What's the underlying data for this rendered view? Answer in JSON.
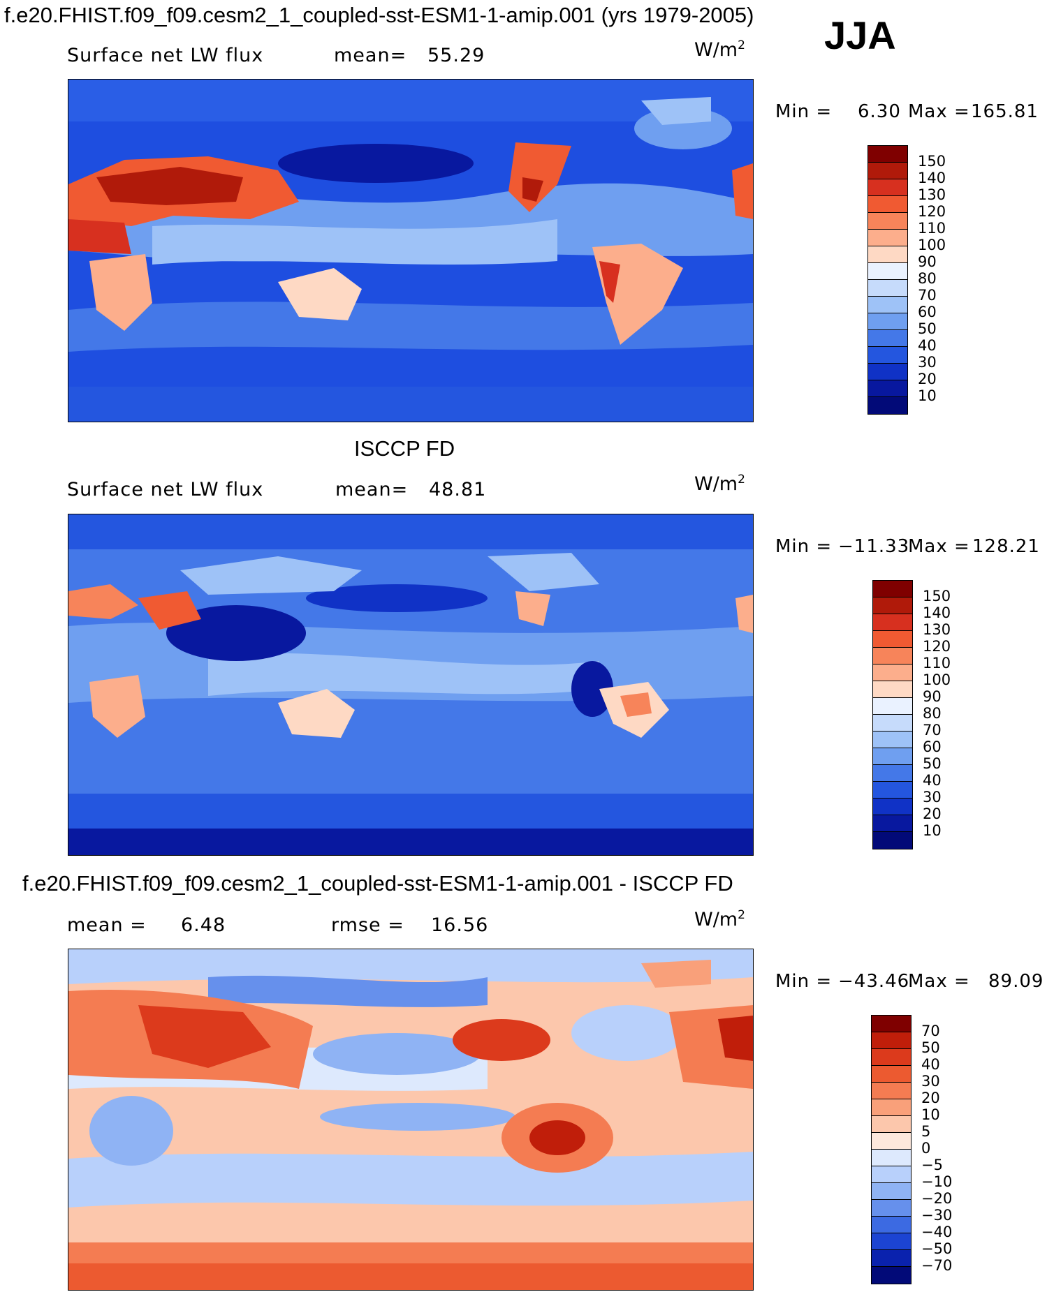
{
  "header": {
    "title": "f.e20.FHIST.f09_f09.cesm2_1_coupled-sst-ESM1-1-amip.001 (yrs 1979-2005)",
    "season": "JJA"
  },
  "panels": [
    {
      "id": "model",
      "title": "",
      "variable": "Surface net LW flux",
      "stat1_label": "mean=",
      "stat1_value": "55.29",
      "stat2_label": "",
      "stat2_value": "",
      "unit_base": "W/m",
      "unit_exp": "2",
      "min_label": "Min =",
      "min_value": "6.30",
      "max_label": "Max =",
      "max_value": "165.81",
      "colorbar": {
        "labels": [
          "150",
          "140",
          "130",
          "120",
          "110",
          "100",
          "90",
          "80",
          "70",
          "60",
          "50",
          "40",
          "30",
          "20",
          "10"
        ],
        "colors": [
          "#7f0000",
          "#b01a0a",
          "#d7301f",
          "#f05a32",
          "#f7845a",
          "#fcae8c",
          "#fed9c4",
          "#eaf2ff",
          "#c6dbfb",
          "#9ec2f7",
          "#6f9ff0",
          "#4478e8",
          "#2456df",
          "#1032c6",
          "#08189f",
          "#020a78"
        ]
      }
    },
    {
      "id": "obs",
      "title": "ISCCP FD",
      "variable": "Surface net LW flux",
      "stat1_label": "mean=",
      "stat1_value": "48.81",
      "stat2_label": "",
      "stat2_value": "",
      "unit_base": "W/m",
      "unit_exp": "2",
      "min_label": "Min =",
      "min_value": "−11.33",
      "max_label": "Max =",
      "max_value": "128.21",
      "colorbar": {
        "labels": [
          "150",
          "140",
          "130",
          "120",
          "110",
          "100",
          "90",
          "80",
          "70",
          "60",
          "50",
          "40",
          "30",
          "20",
          "10"
        ],
        "colors": [
          "#7f0000",
          "#b01a0a",
          "#d7301f",
          "#f05a32",
          "#f7845a",
          "#fcae8c",
          "#fed9c4",
          "#eaf2ff",
          "#c6dbfb",
          "#9ec2f7",
          "#6f9ff0",
          "#4478e8",
          "#2456df",
          "#1032c6",
          "#08189f",
          "#020a78"
        ]
      }
    },
    {
      "id": "diff",
      "title": "f.e20.FHIST.f09_f09.cesm2_1_coupled-sst-ESM1-1-amip.001 - ISCCP FD",
      "variable": "",
      "stat1_label": "mean =",
      "stat1_value": "6.48",
      "stat2_label": "rmse =",
      "stat2_value": "16.56",
      "unit_base": "W/m",
      "unit_exp": "2",
      "min_label": "Min =",
      "min_value": "−43.46",
      "max_label": "Max =",
      "max_value": "89.09",
      "colorbar": {
        "labels": [
          "70",
          "50",
          "40",
          "30",
          "20",
          "10",
          "5",
          "0",
          "−5",
          "−10",
          "−20",
          "−30",
          "−40",
          "−50",
          "−70"
        ],
        "colors": [
          "#7f0000",
          "#c01e0a",
          "#dc3a1c",
          "#ec5a30",
          "#f47c52",
          "#f9a07a",
          "#fcc7ac",
          "#fde8dc",
          "#dde9fd",
          "#b8d0fb",
          "#8fb3f4",
          "#6690ec",
          "#3c6ae2",
          "#1c44d2",
          "#0a22ae",
          "#020a78"
        ]
      }
    }
  ]
}
